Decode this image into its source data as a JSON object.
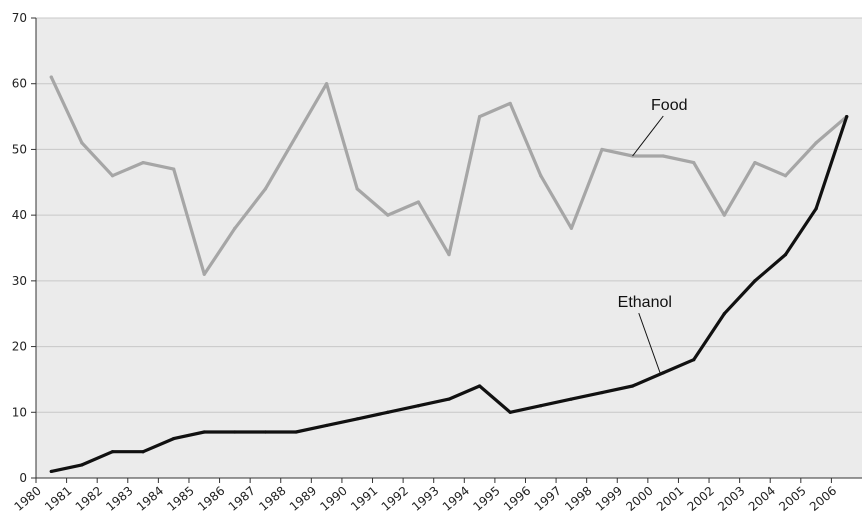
{
  "chart_data": {
    "type": "line",
    "title": "",
    "xlabel": "",
    "ylabel": "",
    "ylim": [
      0,
      70
    ],
    "yticks": [
      "0",
      "10",
      "20",
      "30",
      "40",
      "50",
      "60",
      "70"
    ],
    "xlim": [
      1980,
      2007
    ],
    "xticks": [
      "1980",
      "1981",
      "1982",
      "1983",
      "1984",
      "1985",
      "1986",
      "1987",
      "1988",
      "1989",
      "1990",
      "1991",
      "1992",
      "1993",
      "1994",
      "1995",
      "1996",
      "1997",
      "1998",
      "1999",
      "2000",
      "2001",
      "2002",
      "2003",
      "2004",
      "2005",
      "2006"
    ],
    "grid": true,
    "colors": {
      "food": "#a6a6a6",
      "ethanol": "#111111",
      "grid": "#c8c8c8",
      "plot_bg": "#ebebeb"
    },
    "series": [
      {
        "name": "Food",
        "color": "#a6a6a6",
        "x": [
          1980.5,
          1981.5,
          1982.5,
          1983.5,
          1984.5,
          1985.5,
          1986.5,
          1987.5,
          1988.5,
          1989.5,
          1990.5,
          1991.5,
          1992.5,
          1993.5,
          1994.5,
          1995.5,
          1996.5,
          1997.5,
          1998.5,
          1999.5,
          2000.5,
          2001.5,
          2002.5,
          2003.5,
          2004.5,
          2005.5,
          2006.5
        ],
        "y": [
          61,
          51,
          46,
          48,
          47,
          31,
          38,
          44,
          52,
          60,
          44,
          40,
          42,
          34,
          55,
          57,
          46,
          38,
          50,
          49,
          49,
          48,
          40,
          48,
          46,
          51,
          55
        ]
      },
      {
        "name": "Ethanol",
        "color": "#111111",
        "x": [
          1980.5,
          1981.5,
          1982.5,
          1983.5,
          1984.5,
          1985.5,
          1986.5,
          1987.5,
          1988.5,
          1989.5,
          1990.5,
          1991.5,
          1992.5,
          1993.5,
          1994.5,
          1995.5,
          1996.5,
          1997.5,
          1998.5,
          1999.5,
          2000.5,
          2001.5,
          2002.5,
          2003.5,
          2004.5,
          2005.5,
          2006.5
        ],
        "y": [
          1,
          2,
          4,
          4,
          6,
          7,
          7,
          7,
          7,
          8,
          9,
          10,
          11,
          12,
          14,
          10,
          11,
          12,
          13,
          14,
          16,
          18,
          25,
          30,
          34,
          41,
          55
        ]
      }
    ],
    "annotations": [
      {
        "text": "Food",
        "series": "Food",
        "x": 1999.5,
        "y": 49,
        "label_x": 2000.7,
        "label_y": 56
      },
      {
        "text": "Ethanol",
        "series": "Ethanol",
        "x": 2000.4,
        "y": 16,
        "label_x": 1999.9,
        "label_y": 26
      }
    ]
  }
}
